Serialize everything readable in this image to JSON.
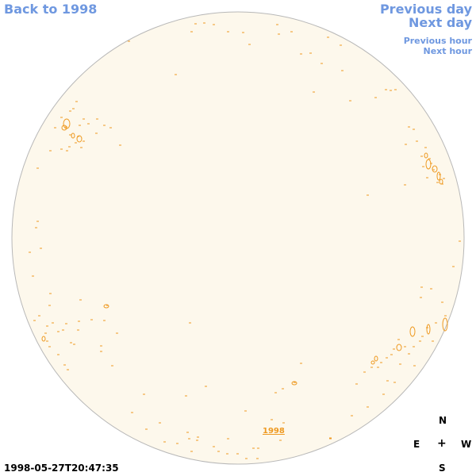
{
  "nav": {
    "back_label": "Back to 1998",
    "prev_day_label": "Previous day",
    "next_day_label": "Next day",
    "prev_hour_label": "Previous hour",
    "next_hour_label": "Next hour"
  },
  "disk": {
    "year_link_label": "1998",
    "fill_color": "#fdf8ec",
    "border_color": "#b8b8b8",
    "contour_color": "#ee9a22"
  },
  "compass": {
    "north": "N",
    "east": "E",
    "center": "+",
    "west": "W",
    "south": "S"
  },
  "timestamp": "1998-05-27T20:47:35"
}
